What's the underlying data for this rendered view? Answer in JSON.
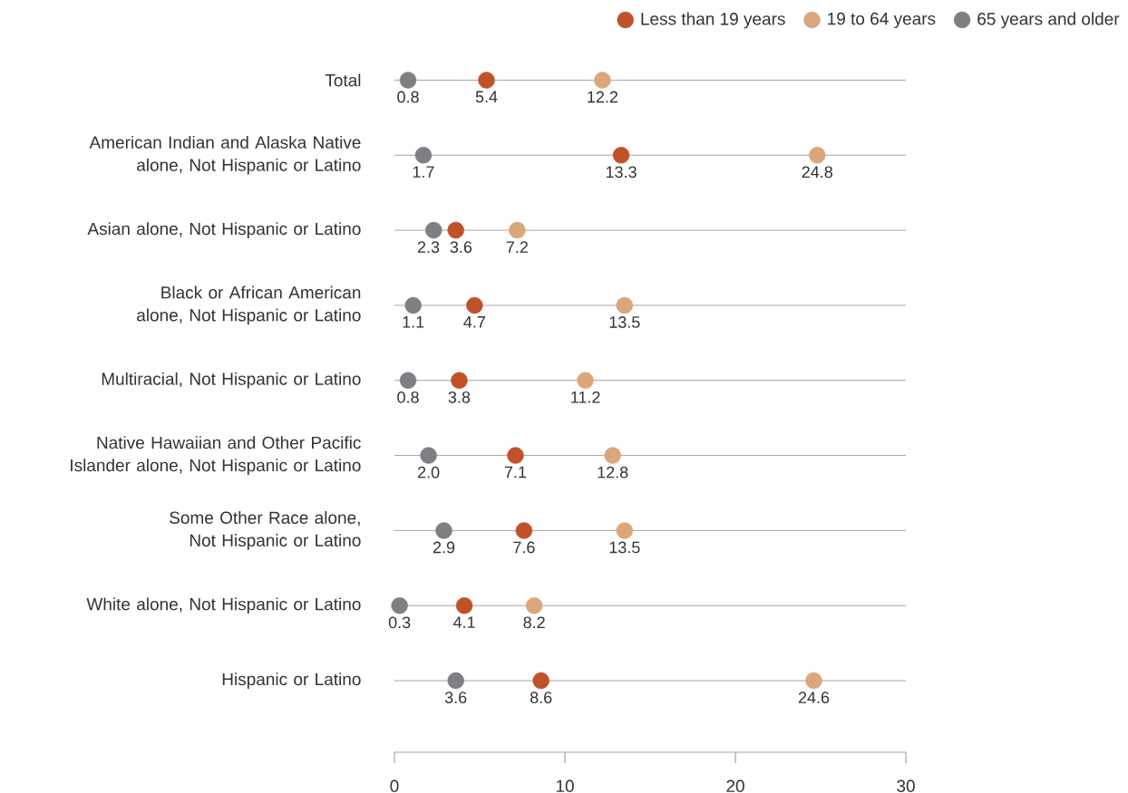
{
  "chart_data": {
    "type": "scatter",
    "orientation": "horizontal",
    "categories": [
      "Total",
      "American Indian and Alaska Native alone, Not Hispanic or Latino",
      "Asian alone, Not Hispanic or Latino",
      "Black or African American alone, Not Hispanic or Latino",
      "Multiracial, Not Hispanic or Latino",
      "Native Hawaiian and Other Pacific Islander alone, Not Hispanic or Latino",
      "Some Other Race alone, Not Hispanic or Latino",
      "White alone, Not Hispanic or Latino",
      "Hispanic or Latino"
    ],
    "series": [
      {
        "name": "Less than 19 years",
        "color": "#c0522a",
        "values": [
          5.4,
          13.3,
          3.6,
          4.7,
          3.8,
          7.1,
          7.6,
          4.1,
          8.6
        ],
        "value_labels": [
          "5.4",
          "13.3",
          "3.6",
          "4.7",
          "3.8",
          "7.1",
          "7.6",
          "4.1",
          "8.6"
        ]
      },
      {
        "name": "19 to 64 years",
        "color": "#dba67b",
        "values": [
          12.2,
          24.8,
          7.2,
          13.5,
          11.2,
          12.8,
          13.5,
          8.2,
          24.6
        ],
        "value_labels": [
          "12.2",
          "24.8",
          "7.2",
          "13.5",
          "11.2",
          "12.8",
          "13.5",
          "8.2",
          "24.6"
        ]
      },
      {
        "name": "65 years and older",
        "color": "#7f7f83",
        "values": [
          0.8,
          1.7,
          2.3,
          1.1,
          0.8,
          2.0,
          2.9,
          0.3,
          3.6
        ],
        "value_labels": [
          "0.8",
          "1.7",
          "2.3",
          "1.1",
          "0.8",
          "2.0",
          "2.9",
          "0.3",
          "3.6"
        ]
      }
    ],
    "xlim": [
      0,
      30
    ],
    "xticks": [
      0,
      10,
      20,
      30
    ],
    "grid": "y",
    "legend": "top right",
    "marker": "circle",
    "data_labels": true
  }
}
